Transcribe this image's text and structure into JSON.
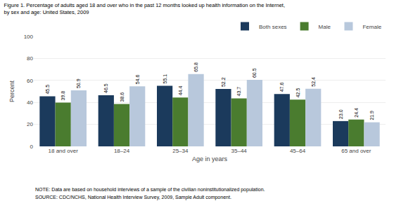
{
  "chart_data": {
    "type": "bar",
    "title": "Figure 1. Percentage of adults aged 18 and over who in the past 12 months looked up health information on the Internet,",
    "subtitle": "by sex and age: United States, 2009",
    "categories": [
      "18 and over",
      "18–24",
      "25–34",
      "35–44",
      "45–64",
      "65 and over"
    ],
    "series": [
      {
        "name": "Both sexes",
        "color": "#1b3a5c",
        "values": [
          45.5,
          46.5,
          55.1,
          52.2,
          47.6,
          23.0
        ],
        "value_labels": [
          "45.5",
          "46.5",
          "55.1",
          "52.2",
          "47.6",
          "23.0"
        ]
      },
      {
        "name": "Male",
        "color": "#4a7c2f",
        "values": [
          39.8,
          38.6,
          44.4,
          43.7,
          42.5,
          24.4
        ]
      },
      {
        "name": "Female",
        "color": "#b8c8dc",
        "values": [
          50.9,
          54.6,
          65.8,
          60.5,
          52.4,
          21.9
        ]
      }
    ],
    "xlabel": "Age in years",
    "ylabel": "Percent",
    "ylim": [
      0,
      100
    ],
    "yticks": [
      0,
      20,
      40,
      60,
      80,
      100
    ],
    "grid": true,
    "legend": "upper right",
    "data_labels": true,
    "annotations": [
      "NOTE: Data are based on household interviews of a sample of the civilian noninstitutionalized population.",
      "SOURCE: CDC/NCHS, National Health Interview Survey, 2009, Sample Adult component."
    ]
  }
}
